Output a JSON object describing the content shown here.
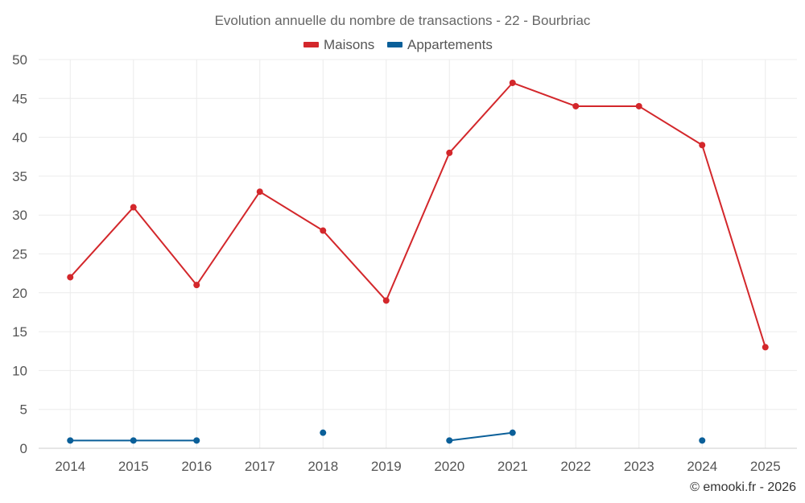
{
  "chart_data": {
    "type": "line",
    "title": "Evolution annuelle du nombre de transactions - 22 - Bourbriac",
    "categories": [
      "2014",
      "2015",
      "2016",
      "2017",
      "2018",
      "2019",
      "2020",
      "2021",
      "2022",
      "2023",
      "2024",
      "2025"
    ],
    "ylim": [
      0,
      50
    ],
    "yticks": [
      0,
      5,
      10,
      15,
      20,
      25,
      30,
      35,
      40,
      45,
      50
    ],
    "grid": true,
    "legend_position": "top-center",
    "series": [
      {
        "name": "Maisons",
        "color": "#d3272b",
        "values": [
          22,
          31,
          21,
          33,
          28,
          19,
          38,
          47,
          44,
          44,
          39,
          13
        ]
      },
      {
        "name": "Appartements",
        "color": "#0a5f99",
        "values": [
          1,
          1,
          1,
          null,
          2,
          null,
          1,
          2,
          null,
          null,
          1,
          null
        ]
      }
    ],
    "credit": "© emooki.fr - 2026"
  }
}
